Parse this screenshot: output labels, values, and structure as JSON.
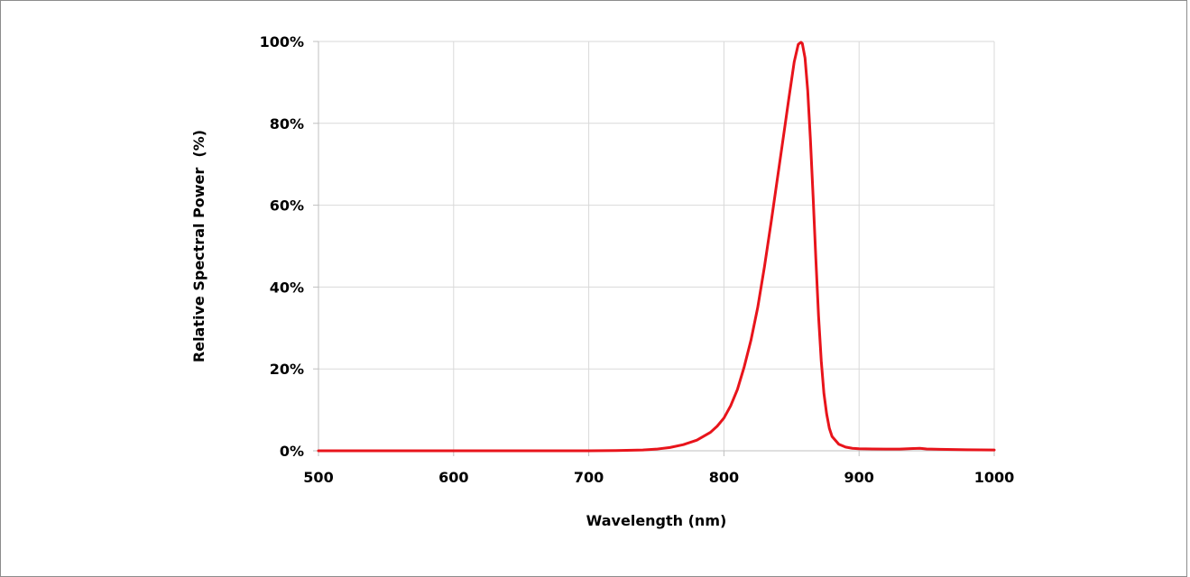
{
  "chart_data": {
    "type": "line",
    "title": "",
    "xlabel": "Wavelength (nm)",
    "ylabel": "Relative Spectral Power  (%)",
    "xlim": [
      500,
      1000
    ],
    "ylim": [
      0,
      100
    ],
    "x_ticks": [
      500,
      600,
      700,
      800,
      900,
      1000
    ],
    "x_tick_labels": [
      "500",
      "600",
      "700",
      "800",
      "900",
      "1000"
    ],
    "y_ticks": [
      0,
      20,
      40,
      60,
      80,
      100
    ],
    "y_tick_labels": [
      "0%",
      "20%",
      "40%",
      "60%",
      "80%",
      "100%"
    ],
    "grid": true,
    "legend": "none",
    "colors": {
      "series": "#e8141b",
      "grid": "#d9d9d9",
      "axis": "#bfbfbf"
    },
    "series": [
      {
        "x": [
          500,
          550,
          600,
          650,
          700,
          720,
          740,
          750,
          760,
          770,
          780,
          790,
          795,
          800,
          805,
          810,
          815,
          820,
          825,
          830,
          835,
          840,
          845,
          848,
          850,
          852,
          855,
          857,
          858,
          860,
          862,
          864,
          866,
          868,
          870,
          872,
          874,
          876,
          878,
          880,
          885,
          890,
          895,
          900,
          910,
          920,
          930,
          940,
          945,
          950,
          960,
          980,
          1000
        ],
        "y": [
          0.0,
          0.0,
          0.0,
          0.0,
          0.0,
          0.05,
          0.2,
          0.4,
          0.8,
          1.5,
          2.6,
          4.5,
          6,
          8,
          11,
          15,
          20.5,
          27,
          35,
          45,
          56,
          67.5,
          79,
          86,
          90.5,
          95,
          99.3,
          99.8,
          99.5,
          96,
          88,
          76,
          62,
          47,
          33,
          22,
          14,
          9,
          5.5,
          3.5,
          1.6,
          0.9,
          0.6,
          0.5,
          0.45,
          0.4,
          0.4,
          0.55,
          0.6,
          0.45,
          0.35,
          0.25,
          0.2
        ]
      }
    ]
  }
}
